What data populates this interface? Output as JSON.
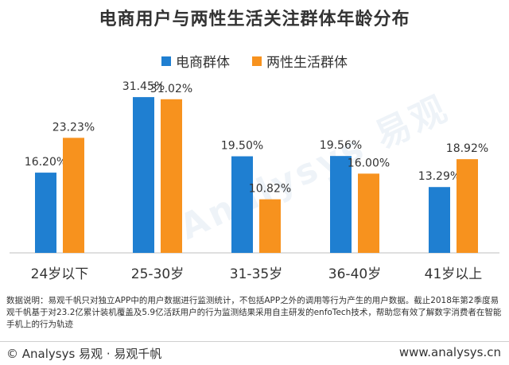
{
  "chart_data": {
    "type": "bar",
    "title": "电商用户与两性生活关注群体年龄分布",
    "categories": [
      "24岁以下",
      "25-30岁",
      "31-35岁",
      "36-40岁",
      "41岁以上"
    ],
    "series": [
      {
        "name": "电商群体",
        "values": [
          16.2,
          31.45,
          19.5,
          19.56,
          13.29
        ],
        "labels": [
          "16.20%",
          "31.45%",
          "19.50%",
          "19.56%",
          "13.29%"
        ],
        "color": "#1f7fd1"
      },
      {
        "name": "两性生活群体",
        "values": [
          23.23,
          31.02,
          10.82,
          16.0,
          18.92
        ],
        "labels": [
          "23.23%",
          "31.02%",
          "10.82%",
          "16.00%",
          "18.92%"
        ],
        "color": "#f7921e"
      }
    ],
    "ylim": [
      0,
      35
    ],
    "grid": false,
    "legend": "top-center"
  },
  "note": "数据说明：易观千帆只对独立APP中的用户数据进行监测统计，不包括APP之外的调用等行为产生的用户数据。截止2018年第2季度易观千帆基于对23.2亿累计装机覆盖及5.9亿活跃用户的行为监测结果采用自主研发的enfoTech技术，帮助您有效了解数字消费者在智能手机上的行为轨迹",
  "footer": {
    "left": "© Analysys 易观 · 易观千帆",
    "right": "www.analysys.cn"
  },
  "watermark": "Analysys 易观"
}
